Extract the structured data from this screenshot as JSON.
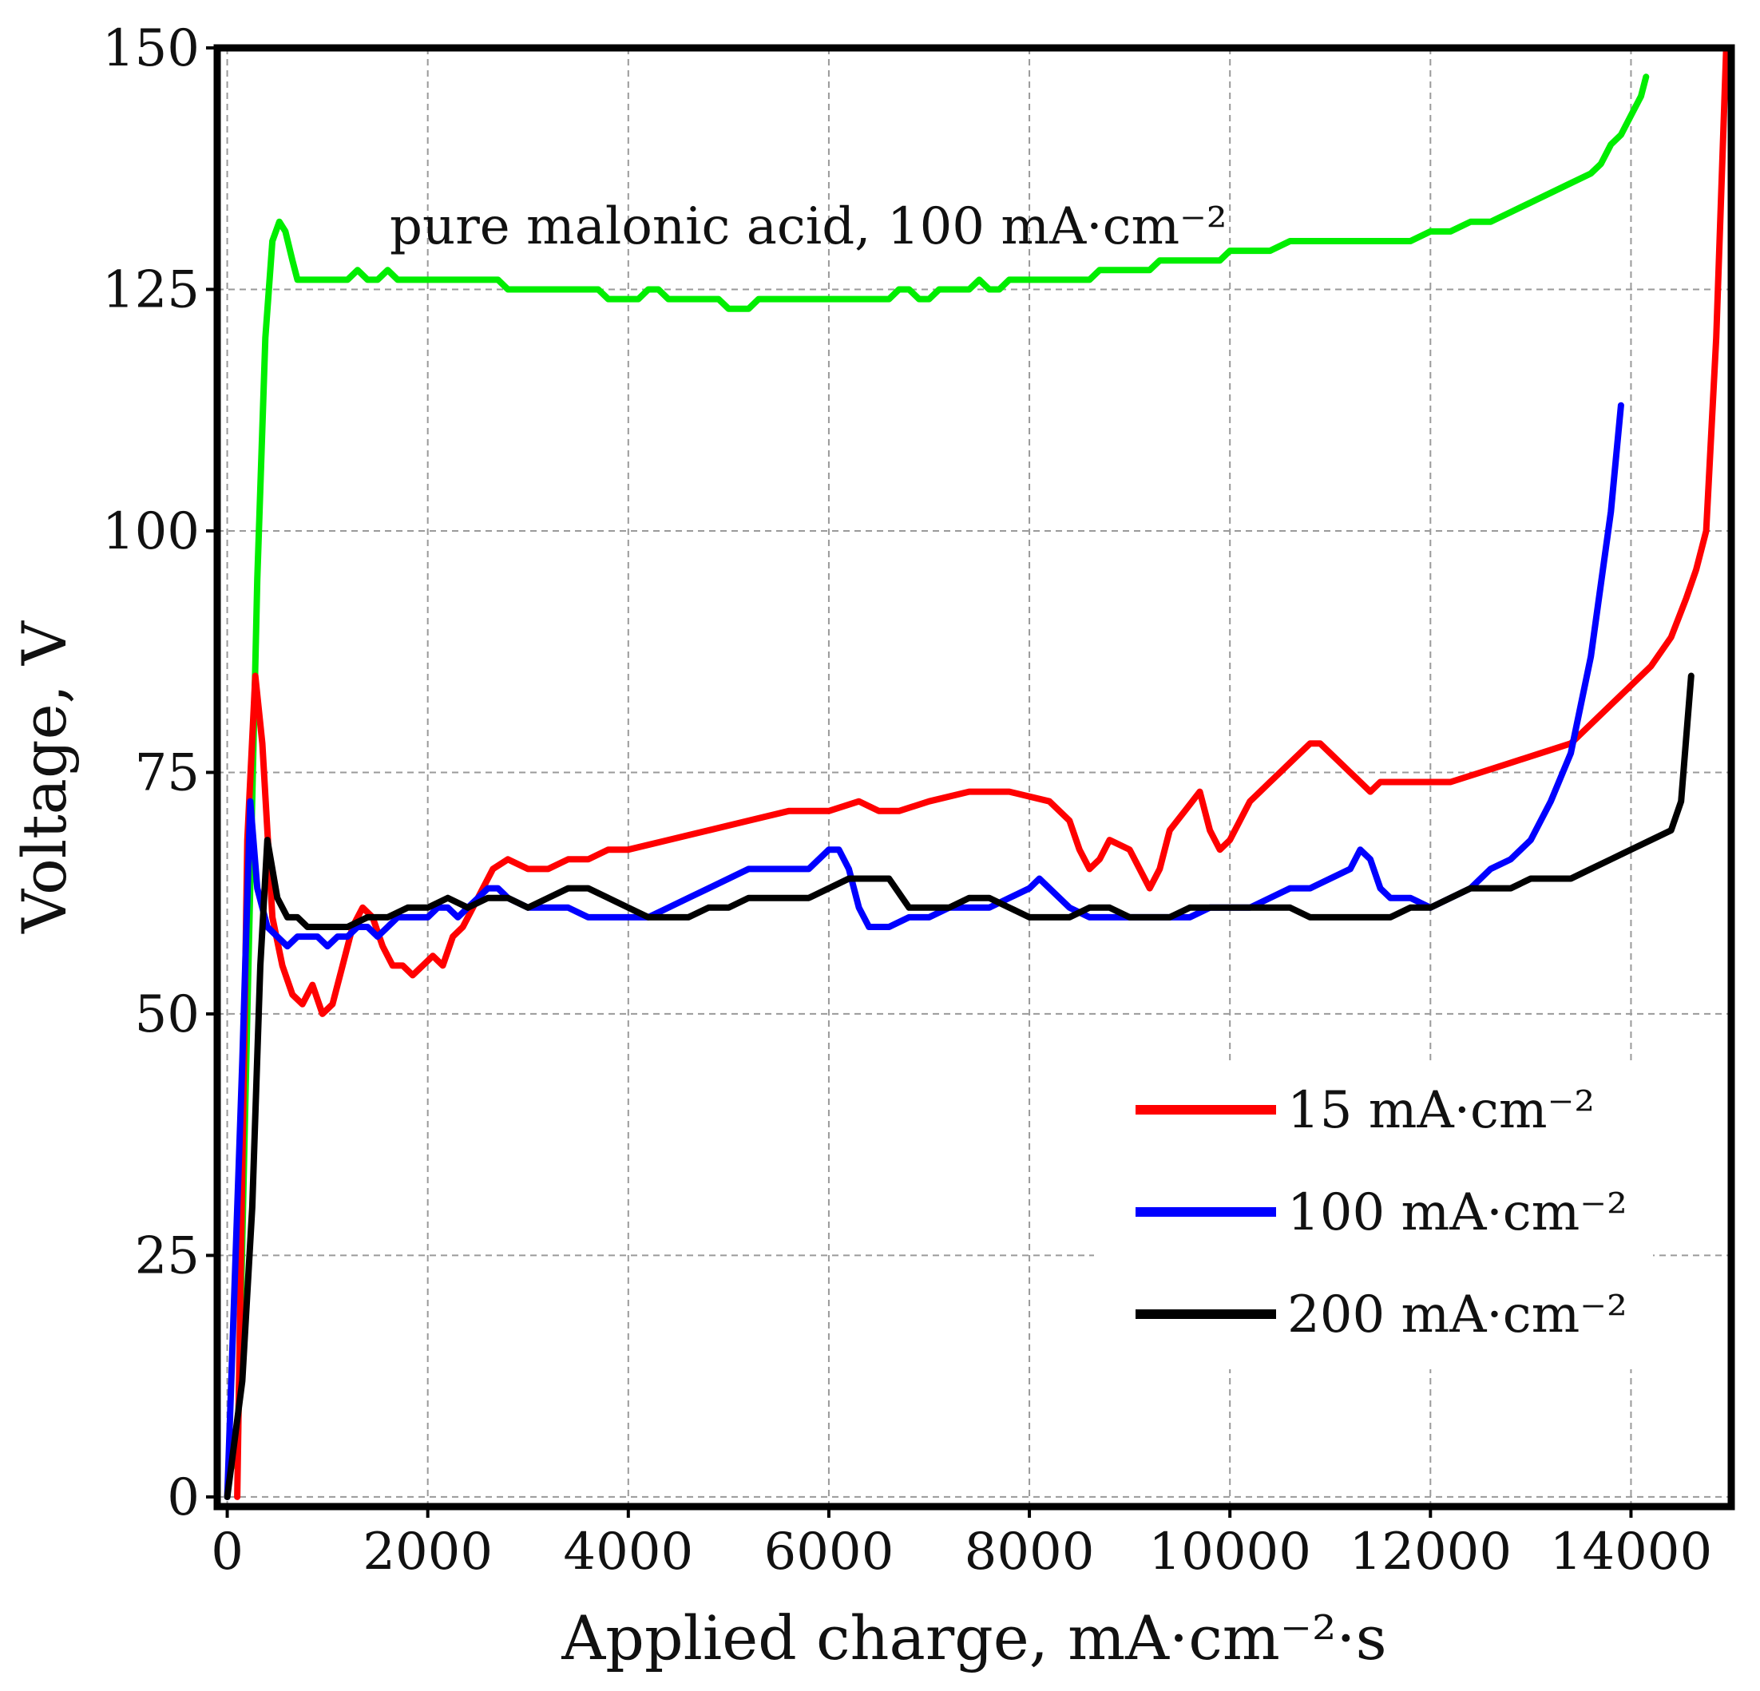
{
  "chart_data": {
    "type": "line",
    "title": "",
    "xlabel": "Applied charge, mA·cm⁻²·s",
    "ylabel": "Voltage, V",
    "xlim": [
      -100,
      15000
    ],
    "ylim": [
      -1,
      150
    ],
    "xticks": [
      0,
      2000,
      4000,
      6000,
      8000,
      10000,
      12000,
      14000
    ],
    "yticks": [
      0,
      25,
      50,
      75,
      100,
      125,
      150
    ],
    "xtick_labels": [
      "0",
      "2000",
      "4000",
      "6000",
      "8000",
      "10000",
      "12000",
      "14000"
    ],
    "ytick_labels": [
      "0",
      "25",
      "50",
      "75",
      "100",
      "125",
      "150"
    ],
    "grid": true,
    "legend_position": "lower-right",
    "annotation": {
      "text": "pure malonic acid, 100 mA·cm⁻²"
    },
    "series": [
      {
        "name": "15 mA·cm⁻²",
        "color": "#ff0000",
        "in_legend": true,
        "x": [
          100,
          200,
          280,
          350,
          450,
          550,
          650,
          750,
          850,
          950,
          1050,
          1150,
          1250,
          1350,
          1450,
          1550,
          1650,
          1750,
          1850,
          1950,
          2050,
          2150,
          2250,
          2350,
          2450,
          2550,
          2650,
          2800,
          3000,
          3200,
          3400,
          3600,
          3800,
          4000,
          4400,
          4800,
          5200,
          5600,
          6000,
          6300,
          6500,
          6700,
          7000,
          7400,
          7800,
          8200,
          8400,
          8500,
          8600,
          8700,
          8800,
          9000,
          9200,
          9300,
          9400,
          9550,
          9700,
          9800,
          9900,
          10000,
          10100,
          10200,
          10300,
          10400,
          10500,
          10600,
          10700,
          10800,
          10900,
          11000,
          11100,
          11200,
          11300,
          11400,
          11500,
          11600,
          11700,
          11800,
          11900,
          12000,
          12200,
          12500,
          12800,
          13100,
          13400,
          13600,
          13800,
          14000,
          14200,
          14400,
          14550,
          14650,
          14750,
          14850,
          14950
        ],
        "y": [
          0,
          68,
          85,
          78,
          60,
          55,
          52,
          51,
          53,
          50,
          51,
          55,
          59,
          61,
          60,
          57,
          55,
          55,
          54,
          55,
          56,
          55,
          58,
          59,
          61,
          63,
          65,
          66,
          65,
          65,
          66,
          66,
          67,
          67,
          68,
          69,
          70,
          71,
          71,
          72,
          71,
          71,
          72,
          73,
          73,
          72,
          70,
          67,
          65,
          66,
          68,
          67,
          63,
          65,
          69,
          71,
          73,
          69,
          67,
          68,
          70,
          72,
          73,
          74,
          75,
          76,
          77,
          78,
          78,
          77,
          76,
          75,
          74,
          73,
          74,
          74,
          74,
          74,
          74,
          74,
          74,
          75,
          76,
          77,
          78,
          80,
          82,
          84,
          86,
          89,
          93,
          96,
          100,
          120,
          150
        ]
      },
      {
        "name": "100 mA·cm⁻²",
        "color": "#0000ff",
        "in_legend": true,
        "x": [
          0,
          150,
          230,
          300,
          400,
          500,
          600,
          700,
          800,
          900,
          1000,
          1100,
          1200,
          1300,
          1400,
          1500,
          1600,
          1700,
          1800,
          1900,
          2000,
          2100,
          2200,
          2300,
          2400,
          2500,
          2600,
          2700,
          2800,
          3000,
          3200,
          3400,
          3600,
          3800,
          4000,
          4200,
          4400,
          4600,
          4800,
          5000,
          5200,
          5400,
          5600,
          5800,
          6000,
          6100,
          6200,
          6300,
          6400,
          6600,
          6800,
          7000,
          7200,
          7400,
          7600,
          7800,
          8000,
          8100,
          8200,
          8400,
          8600,
          8800,
          9000,
          9200,
          9400,
          9600,
          9800,
          10000,
          10200,
          10400,
          10600,
          10800,
          11000,
          11200,
          11300,
          11400,
          11500,
          11600,
          11800,
          12000,
          12200,
          12400,
          12600,
          12800,
          13000,
          13200,
          13400,
          13600,
          13800,
          13900
        ],
        "y": [
          0,
          45,
          72,
          63,
          59,
          58,
          57,
          58,
          58,
          58,
          57,
          58,
          58,
          59,
          59,
          58,
          59,
          60,
          60,
          60,
          60,
          61,
          61,
          60,
          61,
          62,
          63,
          63,
          62,
          61,
          61,
          61,
          60,
          60,
          60,
          60,
          61,
          62,
          63,
          64,
          65,
          65,
          65,
          65,
          67,
          67,
          65,
          61,
          59,
          59,
          60,
          60,
          61,
          61,
          61,
          62,
          63,
          64,
          63,
          61,
          60,
          60,
          60,
          60,
          60,
          60,
          61,
          61,
          61,
          62,
          63,
          63,
          64,
          65,
          67,
          66,
          63,
          62,
          62,
          61,
          62,
          63,
          65,
          66,
          68,
          72,
          77,
          87,
          102,
          113
        ]
      },
      {
        "name": "200 mA·cm⁻²",
        "color": "#000000",
        "in_legend": true,
        "x": [
          0,
          150,
          250,
          330,
          400,
          500,
          600,
          700,
          800,
          900,
          1000,
          1200,
          1400,
          1600,
          1800,
          2000,
          2200,
          2400,
          2600,
          2800,
          3000,
          3200,
          3400,
          3600,
          3800,
          4000,
          4200,
          4400,
          4600,
          4800,
          5000,
          5200,
          5400,
          5600,
          5800,
          6000,
          6200,
          6400,
          6600,
          6800,
          7000,
          7200,
          7400,
          7600,
          7800,
          8000,
          8200,
          8400,
          8600,
          8800,
          9000,
          9200,
          9400,
          9600,
          9800,
          10000,
          10200,
          10400,
          10600,
          10800,
          11000,
          11200,
          11400,
          11600,
          11800,
          12000,
          12200,
          12400,
          12600,
          12800,
          13000,
          13200,
          13400,
          13600,
          13800,
          14000,
          14200,
          14400,
          14500,
          14600
        ],
        "y": [
          0,
          12,
          30,
          55,
          68,
          62,
          60,
          60,
          59,
          59,
          59,
          59,
          60,
          60,
          61,
          61,
          62,
          61,
          62,
          62,
          61,
          62,
          63,
          63,
          62,
          61,
          60,
          60,
          60,
          61,
          61,
          62,
          62,
          62,
          62,
          63,
          64,
          64,
          64,
          61,
          61,
          61,
          62,
          62,
          61,
          60,
          60,
          60,
          61,
          61,
          60,
          60,
          60,
          61,
          61,
          61,
          61,
          61,
          61,
          60,
          60,
          60,
          60,
          60,
          61,
          61,
          62,
          63,
          63,
          63,
          64,
          64,
          64,
          65,
          66,
          67,
          68,
          69,
          72,
          85
        ]
      },
      {
        "name": "pure malonic acid, 100 mA·cm⁻²",
        "color": "#00ee00",
        "in_legend": false,
        "x": [
          100,
          200,
          300,
          380,
          450,
          520,
          580,
          650,
          700,
          800,
          900,
          1000,
          1100,
          1200,
          1300,
          1400,
          1500,
          1600,
          1700,
          1800,
          1900,
          2000,
          2100,
          2200,
          2300,
          2400,
          2500,
          2600,
          2700,
          2800,
          2900,
          3000,
          3100,
          3200,
          3300,
          3400,
          3500,
          3600,
          3700,
          3800,
          3900,
          4000,
          4100,
          4200,
          4300,
          4400,
          4500,
          4600,
          4700,
          4800,
          4900,
          5000,
          5100,
          5200,
          5300,
          5400,
          5500,
          5600,
          5700,
          5800,
          5900,
          6000,
          6100,
          6200,
          6300,
          6400,
          6500,
          6600,
          6700,
          6800,
          6900,
          7000,
          7100,
          7200,
          7300,
          7400,
          7500,
          7600,
          7700,
          7800,
          7900,
          8000,
          8100,
          8200,
          8300,
          8400,
          8500,
          8600,
          8700,
          8800,
          8900,
          9000,
          9100,
          9200,
          9300,
          9400,
          9500,
          9600,
          9700,
          9800,
          9900,
          10000,
          10200,
          10400,
          10600,
          10800,
          11000,
          11200,
          11400,
          11600,
          11800,
          12000,
          12200,
          12400,
          12600,
          12800,
          13000,
          13200,
          13400,
          13600,
          13700,
          13800,
          13900,
          14000,
          14100,
          14150
        ],
        "y": [
          3,
          50,
          95,
          120,
          130,
          132,
          131,
          128,
          126,
          126,
          126,
          126,
          126,
          126,
          127,
          126,
          126,
          127,
          126,
          126,
          126,
          126,
          126,
          126,
          126,
          126,
          126,
          126,
          126,
          125,
          125,
          125,
          125,
          125,
          125,
          125,
          125,
          125,
          125,
          124,
          124,
          124,
          124,
          125,
          125,
          124,
          124,
          124,
          124,
          124,
          124,
          123,
          123,
          123,
          124,
          124,
          124,
          124,
          124,
          124,
          124,
          124,
          124,
          124,
          124,
          124,
          124,
          124,
          125,
          125,
          124,
          124,
          125,
          125,
          125,
          125,
          126,
          125,
          125,
          126,
          126,
          126,
          126,
          126,
          126,
          126,
          126,
          126,
          127,
          127,
          127,
          127,
          127,
          127,
          128,
          128,
          128,
          128,
          128,
          128,
          128,
          129,
          129,
          129,
          130,
          130,
          130,
          130,
          130,
          130,
          130,
          131,
          131,
          132,
          132,
          133,
          134,
          135,
          136,
          137,
          138,
          140,
          141,
          143,
          145,
          147
        ]
      }
    ]
  }
}
